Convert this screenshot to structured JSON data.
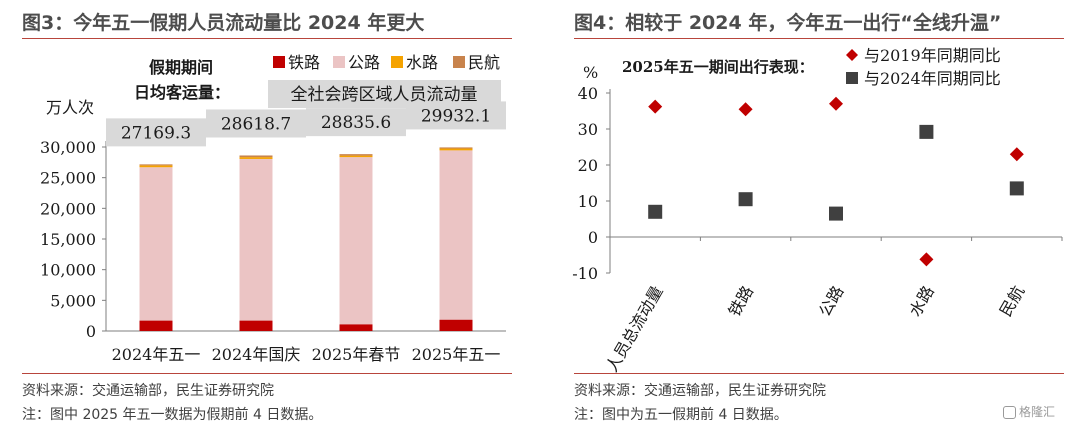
{
  "left": {
    "title": "图3：今年五一假期人员流动量比 2024 年更大",
    "source": "资料来源：交通运输部，民生证券研究院",
    "note": "注：图中 2025 年五一数据为假期前 4 日数据。",
    "yunit": "万人次",
    "caption_line1": "假期期间",
    "caption_line2": "日均客运量：",
    "total_label": "全社会跨区域人员流动量"
  },
  "right": {
    "title": "图4：相较于 2024 年，今年五一出行“全线升温”",
    "source": "资料来源：交通运输部，民生证券研究院",
    "note": "注：图中为五一假期前 4 日数据。",
    "subtitle": "2025年五一期间出行表现：",
    "yunit": "%"
  },
  "watermark": "格隆汇",
  "chart_data": [
    {
      "type": "bar",
      "stacked": true,
      "categories": [
        "2024年五一",
        "2024年国庆",
        "2025年春节",
        "2025年五一"
      ],
      "series": [
        {
          "name": "铁路",
          "color": "#c00000",
          "values": [
            1700,
            1700,
            1100,
            1850
          ]
        },
        {
          "name": "公路",
          "color": "#ebc4c4",
          "values": [
            25000,
            26350,
            27250,
            27600
          ]
        },
        {
          "name": "水路",
          "color": "#f5a300",
          "values": [
            300,
            300,
            250,
            300
          ]
        },
        {
          "name": "民航",
          "color": "#c8834c",
          "values": [
            169.3,
            268.7,
            235.6,
            182.1
          ]
        }
      ],
      "totals": [
        "27169.3",
        "28618.7",
        "28835.6",
        "29932.1"
      ],
      "ylim": [
        0,
        30000
      ],
      "yticks": [
        0,
        5000,
        10000,
        15000,
        20000,
        25000,
        30000
      ],
      "ytick_labels": [
        "0",
        "5,000",
        "10,000",
        "15,000",
        "20,000",
        "25,000",
        "30,000"
      ],
      "legend_position": "top-right"
    },
    {
      "type": "scatter",
      "categories": [
        "人员总流动量",
        "铁路",
        "公路",
        "水路",
        "民航"
      ],
      "series": [
        {
          "name": "与2019年同期同比",
          "marker": "diamond",
          "color": "#c00000",
          "values": [
            36.2,
            35.5,
            37,
            -6.2,
            23
          ]
        },
        {
          "name": "与2024年同期同比",
          "marker": "square",
          "color": "#404040",
          "values": [
            7,
            10.5,
            6.5,
            29.2,
            13.5
          ]
        }
      ],
      "ylim": [
        -10,
        40
      ],
      "yticks": [
        -10,
        0,
        10,
        20,
        30,
        40
      ],
      "grid": false,
      "legend_position": "top-right"
    }
  ]
}
